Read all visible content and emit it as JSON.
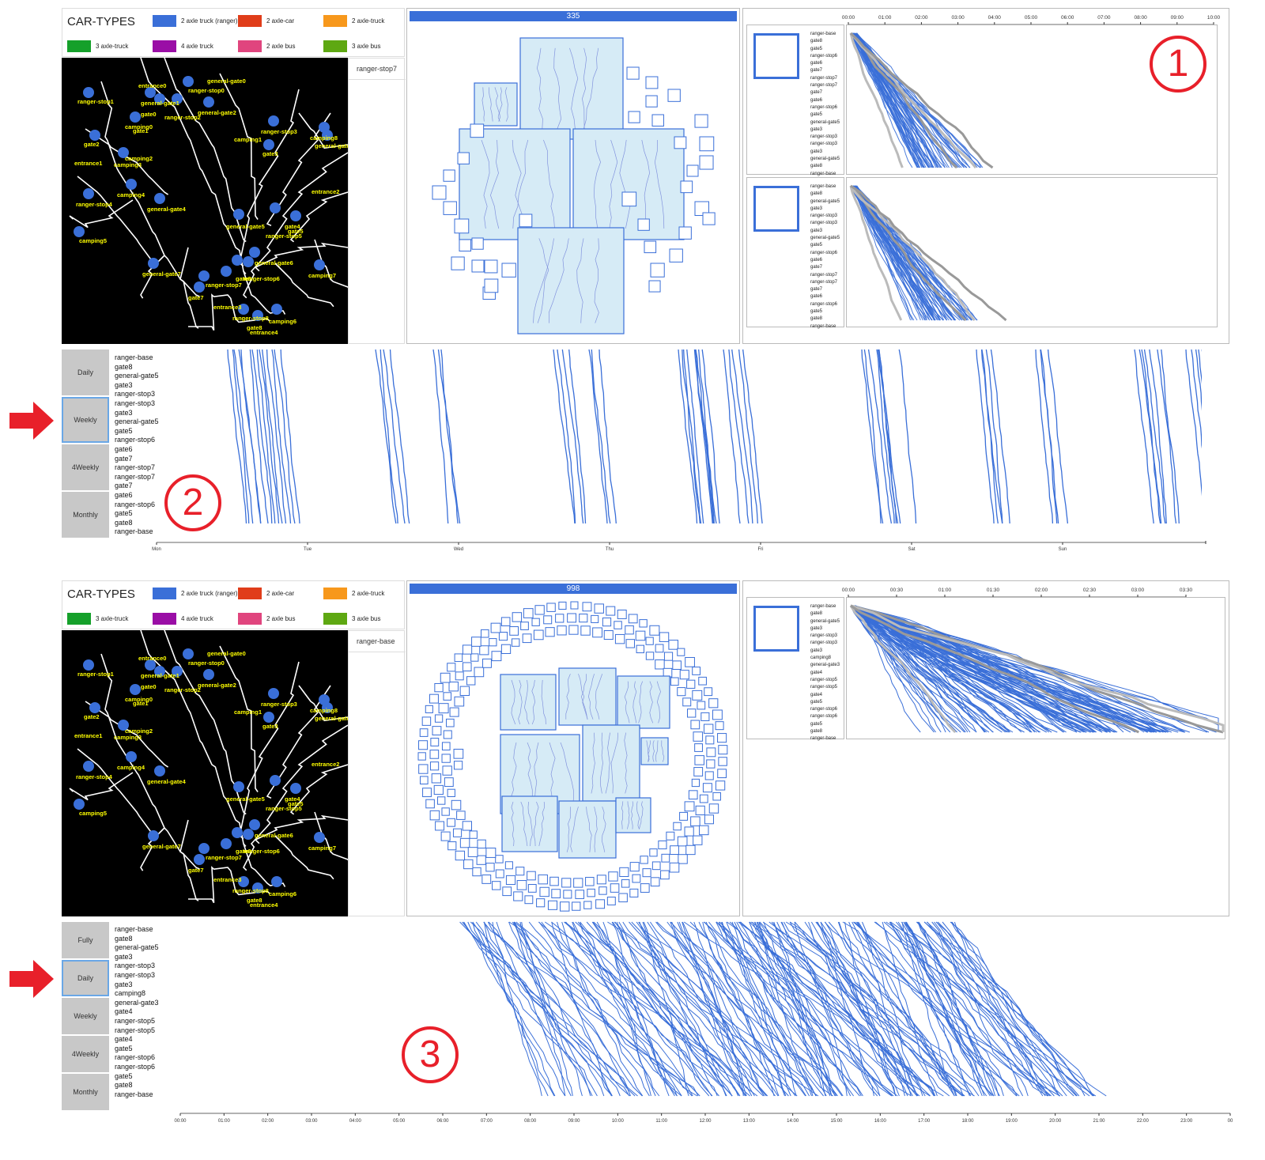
{
  "legend": {
    "title": "CAR-TYPES",
    "items": [
      {
        "label": "2 axle truck (ranger)",
        "color": "#3a6fd8"
      },
      {
        "label": "2 axle-car",
        "color": "#e03d1a"
      },
      {
        "label": "2 axle-truck",
        "color": "#f7981c"
      },
      {
        "label": "3 axle-truck",
        "color": "#15a02a"
      },
      {
        "label": "4 axle truck",
        "color": "#9a0ea6"
      },
      {
        "label": "2 axle bus",
        "color": "#e0457e"
      },
      {
        "label": "3 axle bus",
        "color": "#5ea812"
      }
    ]
  },
  "map_labels": [
    "ranger-stop1",
    "entrance0",
    "general-gate0",
    "ranger-stop0",
    "general-gate1",
    "gate0",
    "camping0",
    "gate1",
    "ranger-stop2",
    "general-gate2",
    "ranger-stop3",
    "camping1",
    "camping8",
    "general-gate3",
    "gate2",
    "entrance1",
    "camping2",
    "camping3",
    "gate3",
    "entrance2",
    "ranger-stop4",
    "camping4",
    "general-gate4",
    "general-gate5",
    "ranger-stop5",
    "gate4",
    "gate5",
    "camping5",
    "general-gate6",
    "general-gate7",
    "ranger-stop6",
    "camping7",
    "ranger-stop7",
    "gate6",
    "gate7",
    "entrance3",
    "ranger-stop8",
    "camping6",
    "gate8",
    "entrance4"
  ],
  "top": {
    "location_box": "ranger-stop7",
    "bar_count": "335",
    "time_ticks": [
      "00:00",
      "01:00",
      "02:00",
      "03:00",
      "04:00",
      "05:00",
      "06:00",
      "07:00",
      "08:00",
      "09:00",
      "10:00"
    ],
    "mini1_list": [
      "ranger-base",
      "gate8",
      "gate5",
      "ranger-stop6",
      "gate6",
      "gate7",
      "ranger-stop7",
      "ranger-stop7",
      "gate7",
      "gate6",
      "ranger-stop6",
      "gate5",
      "general-gate5",
      "gate3",
      "ranger-stop3",
      "ranger-stop3",
      "gate3",
      "general-gate5",
      "gate8",
      "ranger-base"
    ],
    "mini2_list": [
      "ranger-base",
      "gate8",
      "general-gate5",
      "gate3",
      "ranger-stop3",
      "ranger-stop3",
      "gate3",
      "general-gate5",
      "gate5",
      "ranger-stop6",
      "gate6",
      "gate7",
      "ranger-stop7",
      "ranger-stop7",
      "gate7",
      "gate6",
      "ranger-stop6",
      "gate5",
      "gate8",
      "ranger-base"
    ],
    "buttons": [
      "Daily",
      "Weekly",
      "4Weekly",
      "Monthly"
    ],
    "selected_button": "Weekly",
    "route_list": [
      "ranger-base",
      "gate8",
      "general-gate5",
      "gate3",
      "ranger-stop3",
      "ranger-stop3",
      "gate3",
      "general-gate5",
      "gate5",
      "ranger-stop6",
      "gate6",
      "gate7",
      "ranger-stop7",
      "ranger-stop7",
      "gate7",
      "gate6",
      "ranger-stop6",
      "gate5",
      "gate8",
      "ranger-base"
    ],
    "day_ticks": [
      "Mon",
      "Tue",
      "Wed",
      "Thu",
      "Fri",
      "Sat",
      "Sun"
    ],
    "circle_1": "1",
    "circle_2": "2"
  },
  "bottom": {
    "location_box": "ranger-base",
    "bar_count": "998",
    "time_ticks": [
      "00:00",
      "00:30",
      "01:00",
      "01:30",
      "02:00",
      "02:30",
      "03:00",
      "03:30"
    ],
    "mini1_list": [
      "ranger-base",
      "gate8",
      "general-gate5",
      "gate3",
      "ranger-stop3",
      "ranger-stop3",
      "gate3",
      "camping8",
      "general-gate3",
      "gate4",
      "ranger-stop5",
      "ranger-stop5",
      "gate4",
      "gate5",
      "ranger-stop6",
      "ranger-stop6",
      "gate5",
      "gate8",
      "ranger-base"
    ],
    "buttons": [
      "Fully",
      "Daily",
      "Weekly",
      "4Weekly",
      "Monthly"
    ],
    "selected_button": "Daily",
    "route_list": [
      "ranger-base",
      "gate8",
      "general-gate5",
      "gate3",
      "ranger-stop3",
      "ranger-stop3",
      "gate3",
      "camping8",
      "general-gate3",
      "gate4",
      "ranger-stop5",
      "ranger-stop5",
      "gate4",
      "gate5",
      "ranger-stop6",
      "ranger-stop6",
      "gate5",
      "gate8",
      "ranger-base"
    ],
    "hour_ticks": [
      "00:00",
      "01:00",
      "02:00",
      "03:00",
      "04:00",
      "05:00",
      "06:00",
      "07:00",
      "08:00",
      "09:00",
      "10:00",
      "11:00",
      "12:00",
      "13:00",
      "14:00",
      "15:00",
      "16:00",
      "17:00",
      "18:00",
      "19:00",
      "20:00",
      "21:00",
      "22:00",
      "23:00",
      "00"
    ],
    "circle_3": "3"
  },
  "colors": {
    "accent": "#3a6fd8",
    "arrow": "#e8202a",
    "selected_border": "#6aa7e6",
    "button_bg": "#c8c8c8",
    "map_label": "#ffff00"
  }
}
